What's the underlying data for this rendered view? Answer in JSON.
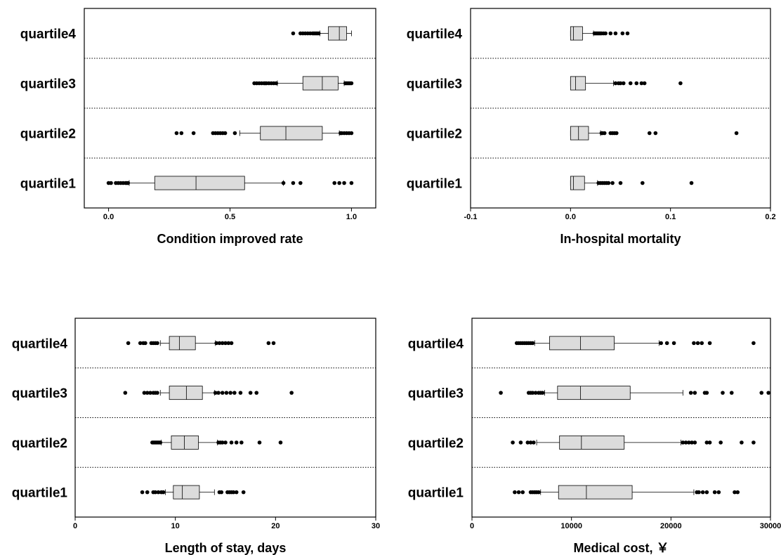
{
  "chart_data": [
    {
      "type": "boxplot",
      "xlabel": "Condition improved rate",
      "xlim": [
        -0.1,
        1.1
      ],
      "xticks": [
        "0.0",
        "0.5",
        "1.0"
      ],
      "xtick_values": [
        0,
        0.5,
        1.0
      ],
      "categories": [
        "quartile4",
        "quartile3",
        "quartile2",
        "quartile1"
      ],
      "boxes": [
        {
          "name": "quartile4",
          "whisker_low": 0.87,
          "q1": 0.905,
          "median": 0.95,
          "q3": 0.98,
          "whisker_high": 1.0,
          "outliers": [
            0.76,
            0.79,
            0.8,
            0.81,
            0.82,
            0.83,
            0.84,
            0.845,
            0.85,
            0.855,
            0.86,
            0.865
          ]
        },
        {
          "name": "quartile3",
          "whisker_low": 0.695,
          "q1": 0.8,
          "median": 0.88,
          "q3": 0.945,
          "whisker_high": 0.97,
          "outliers": [
            0.6,
            0.61,
            0.62,
            0.63,
            0.64,
            0.645,
            0.65,
            0.66,
            0.67,
            0.68,
            0.69,
            0.975,
            0.98,
            0.985,
            0.99,
            0.995,
            1.0
          ]
        },
        {
          "name": "quartile2",
          "whisker_low": 0.54,
          "q1": 0.625,
          "median": 0.73,
          "q3": 0.88,
          "whisker_high": 0.95,
          "outliers": [
            0.28,
            0.3,
            0.35,
            0.43,
            0.44,
            0.45,
            0.46,
            0.47,
            0.48,
            0.52,
            0.955,
            0.96,
            0.97,
            0.98,
            0.99,
            1.0
          ]
        },
        {
          "name": "quartile1",
          "whisker_low": 0.085,
          "q1": 0.19,
          "median": 0.36,
          "q3": 0.56,
          "whisker_high": 0.72,
          "outliers": [
            0.0,
            0.01,
            0.03,
            0.04,
            0.05,
            0.06,
            0.07,
            0.075,
            0.08,
            0.72,
            0.76,
            0.79,
            0.93,
            0.95,
            0.97,
            1.0
          ]
        }
      ]
    },
    {
      "type": "boxplot",
      "xlabel": "In-hospital mortality",
      "xlim": [
        -0.1,
        0.2
      ],
      "xticks": [
        "-0.1",
        "0.0",
        "0.1",
        "0.2"
      ],
      "xtick_values": [
        -0.1,
        0.0,
        0.1,
        0.2
      ],
      "categories": [
        "quartile4",
        "quartile3",
        "quartile2",
        "quartile1"
      ],
      "boxes": [
        {
          "name": "quartile4",
          "whisker_low": 0.0,
          "q1": 0.0,
          "median": 0.003,
          "q3": 0.012,
          "whisker_high": 0.023,
          "outliers": [
            0.024,
            0.025,
            0.026,
            0.027,
            0.028,
            0.029,
            0.03,
            0.031,
            0.033,
            0.035,
            0.04,
            0.045,
            0.052,
            0.057
          ]
        },
        {
          "name": "quartile3",
          "whisker_low": 0.0,
          "q1": 0.0,
          "median": 0.005,
          "q3": 0.015,
          "whisker_high": 0.043,
          "outliers": [
            0.045,
            0.048,
            0.05,
            0.053,
            0.06,
            0.066,
            0.071,
            0.074,
            0.11
          ]
        },
        {
          "name": "quartile2",
          "whisker_low": 0.0,
          "q1": 0.0,
          "median": 0.008,
          "q3": 0.018,
          "whisker_high": 0.03,
          "outliers": [
            0.031,
            0.032,
            0.034,
            0.04,
            0.042,
            0.044,
            0.046,
            0.079,
            0.085,
            0.166
          ]
        },
        {
          "name": "quartile1",
          "whisker_low": 0.0,
          "q1": 0.0,
          "median": 0.003,
          "q3": 0.014,
          "whisker_high": 0.027,
          "outliers": [
            0.028,
            0.03,
            0.032,
            0.034,
            0.036,
            0.038,
            0.042,
            0.05,
            0.072,
            0.121
          ]
        }
      ]
    },
    {
      "type": "boxplot",
      "xlabel": "Length of stay, days",
      "xlim": [
        0,
        30
      ],
      "xticks": [
        "0",
        "10",
        "20",
        "30"
      ],
      "xtick_values": [
        0,
        10,
        20,
        30
      ],
      "categories": [
        "quartile4",
        "quartile3",
        "quartile2",
        "quartile1"
      ],
      "boxes": [
        {
          "name": "quartile4",
          "whisker_low": 8.5,
          "q1": 9.4,
          "median": 10.4,
          "q3": 12.0,
          "whisker_high": 14.0,
          "outliers": [
            5.3,
            6.5,
            6.8,
            7.0,
            7.6,
            7.8,
            8.0,
            8.2,
            14.1,
            14.4,
            14.7,
            15.0,
            15.3,
            15.6,
            19.3,
            19.8
          ]
        },
        {
          "name": "quartile3",
          "whisker_low": 8.5,
          "q1": 9.4,
          "median": 11.1,
          "q3": 12.7,
          "whisker_high": 13.9,
          "outliers": [
            5.0,
            6.9,
            7.2,
            7.5,
            7.8,
            8.0,
            8.2,
            14.0,
            14.3,
            14.7,
            15.1,
            15.5,
            15.9,
            16.5,
            17.5,
            18.1,
            21.6
          ]
        },
        {
          "name": "quartile2",
          "whisker_low": 8.6,
          "q1": 9.6,
          "median": 10.9,
          "q3": 12.3,
          "whisker_high": 14.2,
          "outliers": [
            7.7,
            7.8,
            7.9,
            8.0,
            8.1,
            8.2,
            8.3,
            8.4,
            8.5,
            14.3,
            14.5,
            14.7,
            15.0,
            15.6,
            16.1,
            16.6,
            18.4,
            20.5
          ]
        },
        {
          "name": "quartile1",
          "whisker_low": 9.0,
          "q1": 9.8,
          "median": 10.7,
          "q3": 12.4,
          "whisker_high": 13.9,
          "outliers": [
            6.7,
            7.2,
            7.8,
            8.0,
            8.3,
            8.6,
            8.8,
            14.4,
            14.6,
            15.2,
            15.4,
            15.6,
            15.8,
            16.1,
            16.8
          ]
        }
      ]
    },
    {
      "type": "boxplot",
      "xlabel": "Medical cost, ￥",
      "xlim": [
        0,
        30000
      ],
      "xticks": [
        "0",
        "10000",
        "20000",
        "30000"
      ],
      "xtick_values": [
        0,
        10000,
        20000,
        30000
      ],
      "categories": [
        "quartile4",
        "quartile3",
        "quartile2",
        "quartile1"
      ],
      "boxes": [
        {
          "name": "quartile4",
          "whisker_low": 6300,
          "q1": 7800,
          "median": 10900,
          "q3": 14300,
          "whisker_high": 18800,
          "outliers": [
            4500,
            4700,
            4900,
            5100,
            5300,
            5500,
            5700,
            5900,
            6100,
            19000,
            19600,
            20300,
            22300,
            22700,
            23100,
            23900,
            28300
          ]
        },
        {
          "name": "quartile3",
          "whisker_low": 7300,
          "q1": 8600,
          "median": 10900,
          "q3": 15900,
          "whisker_high": 21200,
          "outliers": [
            2900,
            5700,
            5900,
            6100,
            6400,
            6700,
            6900,
            7100,
            22000,
            22400,
            23400,
            23600,
            25200,
            26100,
            29100,
            29800
          ]
        },
        {
          "name": "quartile2",
          "whisker_low": 6500,
          "q1": 8800,
          "median": 11000,
          "q3": 15300,
          "whisker_high": 21000,
          "outliers": [
            4100,
            4900,
            5600,
            5900,
            6200,
            21200,
            21500,
            21800,
            22100,
            22400,
            23600,
            23900,
            25000,
            27100,
            28300
          ]
        },
        {
          "name": "quartile1",
          "whisker_low": 6900,
          "q1": 8700,
          "median": 11500,
          "q3": 16100,
          "whisker_high": 22300,
          "outliers": [
            4300,
            4700,
            5100,
            5900,
            6100,
            6300,
            6500,
            6700,
            22600,
            22800,
            23200,
            23600,
            24400,
            24800,
            26400,
            26700
          ]
        }
      ]
    }
  ]
}
